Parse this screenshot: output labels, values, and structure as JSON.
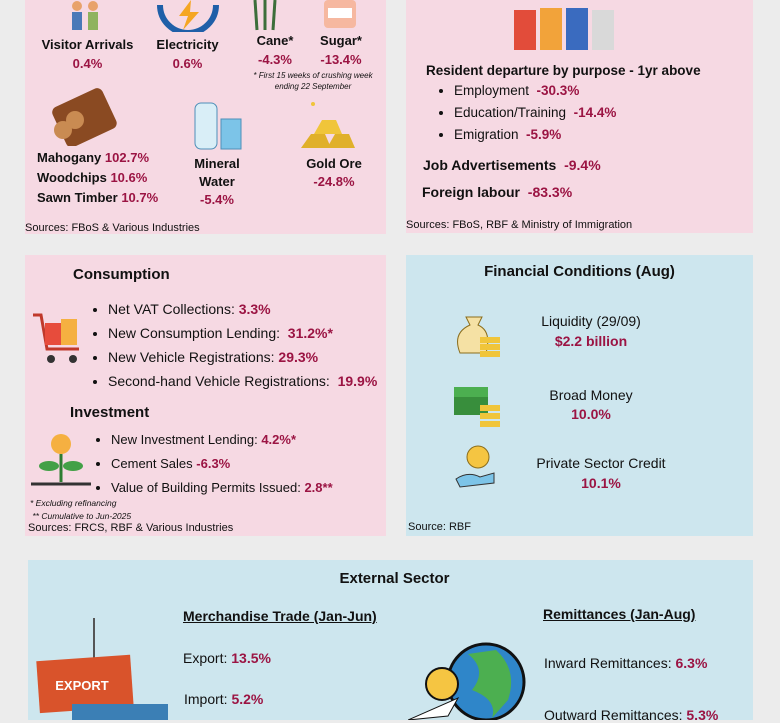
{
  "sectors": {
    "items": [
      {
        "label": "Visitor Arrivals",
        "value": "0.4%"
      },
      {
        "label": "Electricity",
        "value": "0.6%"
      },
      {
        "label": "Cane*",
        "value": "-4.3%"
      },
      {
        "label": "Sugar*",
        "value": "-13.4%"
      }
    ],
    "note": "* First 15 weeks of crushing week ending 22 September",
    "timber": [
      {
        "label": "Mahogany",
        "value": "102.7%"
      },
      {
        "label": "Woodchips",
        "value": "10.6%"
      },
      {
        "label": "Sawn Timber",
        "value": "10.7%"
      }
    ],
    "mineral_water": {
      "label": "Mineral Water",
      "value": "-5.4%"
    },
    "gold": {
      "label": "Gold Ore",
      "value": "-24.8%"
    },
    "source": "Sources: FBoS &  Various Industries"
  },
  "labour": {
    "heading": "Resident departure by purpose - 1yr above",
    "items": [
      {
        "label": "Employment",
        "value": "-30.3%"
      },
      {
        "label": "Education/Training",
        "value": "-14.4%"
      },
      {
        "label": "Emigration",
        "value": "-5.9%"
      }
    ],
    "job_ads": {
      "label": "Job Advertisements",
      "value": "-9.4%"
    },
    "foreign": {
      "label": "Foreign labour",
      "value": "-83.3%"
    },
    "source": "Sources: FBoS, RBF & Ministry of Immigration"
  },
  "consumption": {
    "title": "Consumption",
    "items": [
      {
        "label": "Net VAT Collections:",
        "value": "3.3%"
      },
      {
        "label": "New Consumption Lending:",
        "value": "31.2%*"
      },
      {
        "label": "New Vehicle Registrations:",
        "value": "29.3%"
      },
      {
        "label": "Second-hand Vehicle Registrations:",
        "value": "19.9%"
      }
    ],
    "investment_title": "Investment",
    "investment": [
      {
        "label": "New Investment Lending:",
        "value": "4.2%*"
      },
      {
        "label": "Cement Sales",
        "value": "-6.3%"
      },
      {
        "label": "Value of Building Permits Issued:",
        "value": "2.8**"
      }
    ],
    "notes": [
      "* Excluding refinancing",
      " ** Cumulative to Jun-2025"
    ],
    "source": "Sources: FRCS, RBF & Various Industries"
  },
  "financial": {
    "title": "Financial Conditions (Aug)",
    "items": [
      {
        "label": "Liquidity (29/09)",
        "value": "$2.2 billion"
      },
      {
        "label": "Broad Money",
        "value": "10.0%"
      },
      {
        "label": "Private Sector Credit",
        "value": "10.1%"
      }
    ],
    "source": "Source: RBF"
  },
  "external": {
    "title": "External Sector",
    "trade": {
      "heading": "Merchandise Trade (Jan-Jun)",
      "items": [
        {
          "label": "Export:",
          "value": "13.5%"
        },
        {
          "label": "Import:",
          "value": "5.2%"
        }
      ],
      "container_label": "EXPORT"
    },
    "remittances": {
      "heading": "Remittances (Jan-Aug)",
      "items": [
        {
          "label": "Inward Remittances:",
          "value": "6.3%"
        },
        {
          "label": "Outward Remittances:",
          "value": "5.3%"
        }
      ]
    }
  }
}
